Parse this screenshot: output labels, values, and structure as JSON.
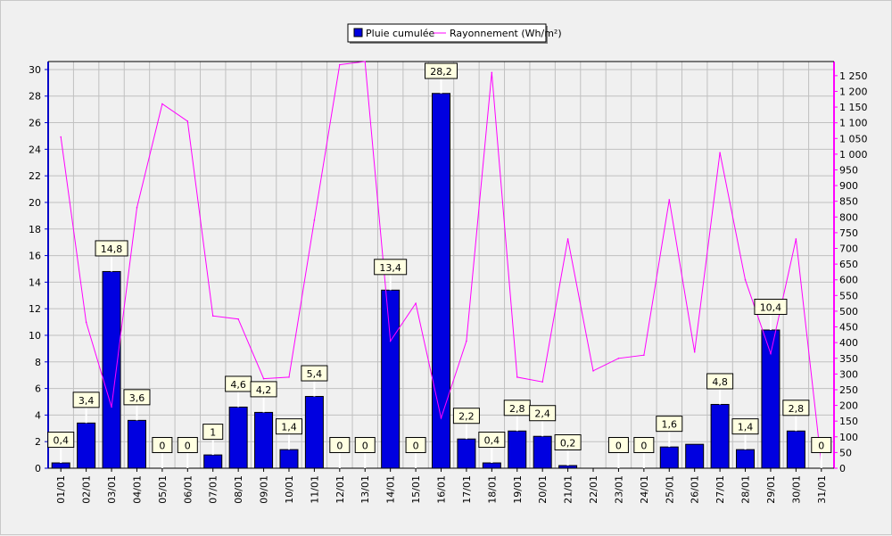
{
  "chart_data": {
    "type": "bar",
    "categories": [
      "01/01",
      "02/01",
      "03/01",
      "04/01",
      "05/01",
      "06/01",
      "07/01",
      "08/01",
      "09/01",
      "10/01",
      "11/01",
      "12/01",
      "13/01",
      "14/01",
      "15/01",
      "16/01",
      "17/01",
      "18/01",
      "19/01",
      "20/01",
      "21/01",
      "22/01",
      "23/01",
      "24/01",
      "25/01",
      "26/01",
      "27/01",
      "28/01",
      "29/01",
      "30/01",
      "31/01"
    ],
    "series": [
      {
        "name": "Pluie cumulée",
        "type": "bar",
        "axis": "left",
        "color": "#0000e0",
        "values": [
          0.4,
          3.4,
          14.8,
          3.6,
          0,
          0,
          1,
          4.6,
          4.2,
          1.4,
          5.4,
          0,
          0,
          13.4,
          0,
          28.2,
          2.2,
          0.4,
          2.8,
          2.4,
          0.2,
          0,
          0,
          0,
          1.6,
          1.8,
          4.8,
          1.4,
          10.4,
          2.8,
          0
        ],
        "labels": [
          "0,4",
          "3,4",
          "14,8",
          "3,6",
          "0",
          "0",
          "1",
          "4,6",
          "4,2",
          "1,4",
          "5,4",
          "0",
          "0",
          "13,4",
          "0",
          "28,2",
          "2,2",
          "0,4",
          "2,8",
          "2,4",
          "0,2",
          "",
          "0",
          "0",
          "1,6",
          "",
          "4,8",
          "1,4",
          "10,4",
          "2,8",
          "0"
        ]
      },
      {
        "name": "Rayonnement (Wh/m²)",
        "type": "line",
        "axis": "right",
        "color": "#ff00ff",
        "values": [
          1055,
          465,
          195,
          830,
          1160,
          1105,
          485,
          475,
          285,
          290,
          790,
          1285,
          1295,
          405,
          525,
          160,
          405,
          1260,
          290,
          275,
          730,
          310,
          350,
          360,
          855,
          370,
          1005,
          600,
          365,
          730,
          15
        ]
      }
    ],
    "y_left": {
      "min": 0,
      "max": 30.6,
      "ticks": [
        0,
        2,
        4,
        6,
        8,
        10,
        12,
        14,
        16,
        18,
        20,
        22,
        24,
        26,
        28,
        30
      ]
    },
    "y_right": {
      "min": 0,
      "max": 1295,
      "ticks": [
        0,
        50,
        100,
        150,
        200,
        250,
        300,
        350,
        400,
        450,
        500,
        550,
        600,
        650,
        700,
        750,
        800,
        850,
        900,
        950,
        1000,
        1050,
        1100,
        1150,
        1200,
        1250
      ],
      "tick_labels": [
        "0",
        "50",
        "100",
        "150",
        "200",
        "250",
        "300",
        "350",
        "400",
        "450",
        "500",
        "550",
        "600",
        "650",
        "700",
        "750",
        "800",
        "850",
        "900",
        "950",
        "1 000",
        "1 050",
        "1 100",
        "1 150",
        "1 200",
        "1 250"
      ]
    },
    "grid": true,
    "legend_position": "top-center",
    "colors": {
      "background": "#f0f0f0",
      "grid": "#c0c0c0",
      "axis_left": "#0000c8",
      "axis_right": "#ff00ff",
      "label_box_fill": "#ffffe1"
    }
  }
}
